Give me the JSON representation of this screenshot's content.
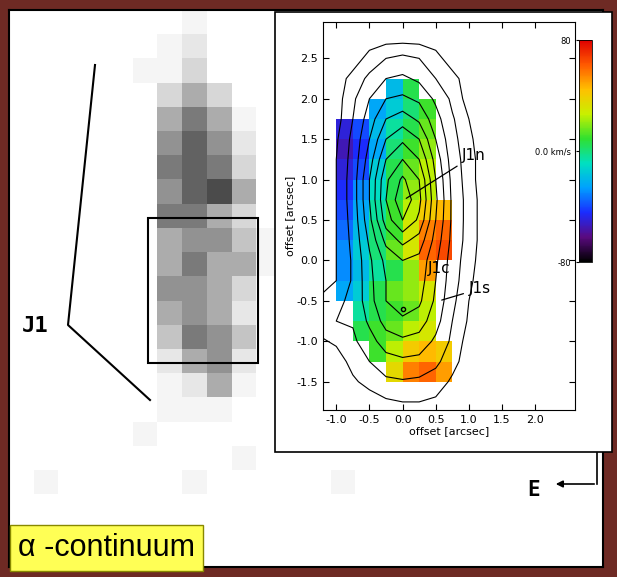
{
  "chart_data": [
    {
      "type": "image",
      "tick_labels": false,
      "annotations": [
        "J1",
        "E",
        "α -continuum"
      ],
      "cells": [
        [
          0,
          0,
          0,
          0,
          0,
          0,
          0,
          1,
          0,
          0,
          0,
          0,
          0,
          0,
          0,
          0,
          0,
          0,
          0,
          0,
          0,
          0,
          0,
          0
        ],
        [
          0,
          0,
          0,
          0,
          0,
          0,
          1,
          2,
          0,
          0,
          0,
          0,
          0,
          0,
          0,
          0,
          0,
          0,
          0,
          0,
          0,
          0,
          0,
          0
        ],
        [
          0,
          0,
          0,
          0,
          0,
          1,
          1,
          3,
          0,
          0,
          0,
          0,
          0,
          0,
          0,
          0,
          0,
          0,
          0,
          0,
          0,
          0,
          0,
          0
        ],
        [
          0,
          0,
          0,
          0,
          0,
          0,
          3,
          5,
          3,
          0,
          0,
          0,
          0,
          0,
          0,
          0,
          0,
          0,
          0,
          0,
          0,
          0,
          0,
          0
        ],
        [
          0,
          0,
          0,
          0,
          0,
          0,
          5,
          7,
          5,
          1,
          0,
          0,
          0,
          0,
          0,
          0,
          0,
          0,
          0,
          0,
          0,
          0,
          0,
          0
        ],
        [
          0,
          0,
          0,
          0,
          0,
          0,
          6,
          8,
          6,
          2,
          0,
          0,
          0,
          0,
          0,
          0,
          0,
          0,
          0,
          0,
          0,
          0,
          0,
          0
        ],
        [
          0,
          0,
          0,
          0,
          0,
          0,
          7,
          8,
          7,
          3,
          0,
          0,
          0,
          0,
          0,
          0,
          0,
          0,
          0,
          0,
          0,
          0,
          0,
          0
        ],
        [
          0,
          0,
          0,
          0,
          0,
          0,
          6,
          8,
          9,
          5,
          0,
          0,
          0,
          0,
          0,
          0,
          0,
          0,
          0,
          0,
          0,
          0,
          0,
          0
        ],
        [
          0,
          0,
          0,
          0,
          0,
          0,
          7,
          7,
          5,
          3,
          0,
          0,
          0,
          0,
          0,
          0,
          0,
          0,
          0,
          0,
          0,
          0,
          0,
          0
        ],
        [
          0,
          0,
          0,
          0,
          0,
          0,
          5,
          6,
          6,
          4,
          1,
          0,
          0,
          0,
          0,
          0,
          0,
          0,
          0,
          0,
          0,
          0,
          0,
          0
        ],
        [
          0,
          0,
          0,
          0,
          0,
          0,
          5,
          7,
          5,
          5,
          1,
          0,
          0,
          0,
          0,
          0,
          0,
          0,
          0,
          0,
          0,
          0,
          0,
          0
        ],
        [
          0,
          0,
          0,
          0,
          0,
          0,
          6,
          6,
          5,
          3,
          0,
          0,
          0,
          0,
          0,
          0,
          0,
          0,
          0,
          0,
          0,
          0,
          0,
          0
        ],
        [
          0,
          0,
          0,
          0,
          0,
          0,
          5,
          6,
          5,
          2,
          0,
          0,
          0,
          0,
          0,
          0,
          0,
          0,
          0,
          0,
          0,
          0,
          0,
          0
        ],
        [
          0,
          0,
          0,
          0,
          0,
          0,
          4,
          7,
          6,
          4,
          0,
          0,
          0,
          0,
          0,
          0,
          0,
          0,
          0,
          0,
          0,
          0,
          0,
          0
        ],
        [
          0,
          0,
          0,
          0,
          0,
          0,
          2,
          5,
          6,
          2,
          0,
          0,
          0,
          0,
          0,
          0,
          0,
          0,
          0,
          0,
          0,
          0,
          0,
          0
        ],
        [
          0,
          0,
          0,
          0,
          0,
          0,
          1,
          2,
          5,
          1,
          0,
          0,
          0,
          0,
          0,
          0,
          0,
          0,
          0,
          0,
          0,
          0,
          0,
          0
        ],
        [
          0,
          0,
          0,
          0,
          0,
          0,
          1,
          1,
          1,
          0,
          0,
          0,
          0,
          0,
          0,
          0,
          0,
          0,
          0,
          0,
          0,
          0,
          0,
          0
        ],
        [
          0,
          0,
          0,
          0,
          0,
          1,
          0,
          0,
          0,
          0,
          0,
          0,
          0,
          0,
          0,
          0,
          0,
          0,
          0,
          0,
          0,
          0,
          0,
          0
        ],
        [
          0,
          0,
          0,
          0,
          0,
          0,
          0,
          0,
          0,
          1,
          0,
          0,
          0,
          0,
          0,
          0,
          0,
          0,
          0,
          0,
          0,
          0,
          0,
          0
        ],
        [
          0,
          1,
          0,
          0,
          0,
          0,
          0,
          1,
          0,
          0,
          0,
          0,
          0,
          1,
          0,
          0,
          0,
          0,
          0,
          0,
          0,
          0,
          0,
          0
        ],
        [
          0,
          0,
          0,
          0,
          0,
          0,
          0,
          0,
          0,
          0,
          0,
          0,
          0,
          0,
          0,
          0,
          0,
          0,
          0,
          0,
          0,
          0,
          0,
          0
        ],
        [
          0,
          0,
          0,
          0,
          0,
          0,
          0,
          0,
          0,
          0,
          0,
          0,
          0,
          0,
          0,
          0,
          0,
          0,
          0,
          0,
          0,
          0,
          0,
          0
        ],
        [
          0,
          0,
          0,
          0,
          0,
          0,
          0,
          0,
          0,
          0,
          0,
          0,
          0,
          0,
          0,
          0,
          0,
          0,
          0,
          0,
          0,
          0,
          0,
          0
        ]
      ]
    },
    {
      "type": "heatmap",
      "xlabel": "offset [arcsec]",
      "ylabel": "offset [arcsec]",
      "xlim": [
        -1.2,
        2.6
      ],
      "ylim": [
        -1.85,
        2.95
      ],
      "xticks": [
        -1.0,
        -0.5,
        0.0,
        0.5,
        1.0,
        1.5,
        2.0
      ],
      "yticks": [
        -1.5,
        -1.0,
        -0.5,
        0.0,
        0.5,
        1.0,
        1.5,
        2.0,
        2.5
      ],
      "annotations": [
        "J1n",
        "J1c",
        "J1s"
      ],
      "x_edges": [
        -1.0,
        -0.75,
        -0.5,
        -0.25,
        0.0,
        0.25,
        0.5,
        0.75
      ],
      "y_edges": [
        2.25,
        2.0,
        1.75,
        1.5,
        1.25,
        1.0,
        0.75,
        0.5,
        0.25,
        0.0,
        -0.25,
        -0.5,
        -0.75,
        -1.0,
        -1.25,
        -1.5
      ],
      "cells": [
        [
          null,
          null,
          null,
          -20,
          5,
          null,
          null
        ],
        [
          null,
          null,
          -25,
          -15,
          0,
          10,
          null
        ],
        [
          -50,
          -40,
          -20,
          -5,
          5,
          15,
          null
        ],
        [
          -55,
          -45,
          -25,
          0,
          10,
          20,
          null
        ],
        [
          -50,
          -40,
          -15,
          5,
          15,
          25,
          null
        ],
        [
          -45,
          -30,
          -10,
          5,
          20,
          25,
          null
        ],
        [
          -40,
          -25,
          -5,
          10,
          25,
          40,
          45
        ],
        [
          -35,
          -20,
          0,
          10,
          30,
          55,
          60
        ],
        [
          -30,
          -15,
          0,
          15,
          30,
          60,
          65
        ],
        [
          -30,
          -20,
          -5,
          5,
          20,
          50,
          null
        ],
        [
          -25,
          -15,
          5,
          15,
          20,
          30,
          null
        ],
        [
          null,
          -5,
          5,
          10,
          15,
          25,
          null
        ],
        [
          null,
          5,
          10,
          15,
          25,
          30,
          null
        ],
        [
          null,
          null,
          10,
          25,
          40,
          45,
          40
        ],
        [
          null,
          null,
          null,
          35,
          55,
          60,
          50
        ]
      ],
      "colorbar_range": [
        -80,
        80
      ],
      "colorbar_ticks": [
        -80,
        {
          "value": 0,
          "label": "0.0 km/s"
        },
        80
      ],
      "contour_x": [
        -1.25,
        -1.0,
        -0.75,
        -0.5,
        -0.25,
        0.0,
        0.25,
        0.5,
        0.75,
        1.0,
        1.25,
        1.5
      ],
      "contour_y": [
        2.75,
        2.5,
        2.25,
        2.0,
        1.75,
        1.5,
        1.25,
        1.0,
        0.75,
        0.5,
        0.25,
        0.0,
        -0.25,
        -0.5,
        -0.75,
        -1.0,
        -1.25,
        -1.5,
        -1.75
      ],
      "contour_flux": [
        [
          0,
          0,
          0,
          0,
          0,
          0,
          0,
          0,
          0,
          0,
          0,
          0
        ],
        [
          0,
          0,
          0,
          0.5,
          1,
          1.2,
          1,
          0.5,
          0,
          0,
          0,
          0
        ],
        [
          0,
          0,
          0.5,
          1.2,
          2,
          2.2,
          1.8,
          1,
          0.5,
          0,
          0,
          0
        ],
        [
          0,
          0,
          0.8,
          2,
          3,
          3.2,
          2.8,
          1.8,
          0.8,
          0,
          0,
          0
        ],
        [
          0,
          0,
          1,
          2.5,
          4,
          4.5,
          3.8,
          2.4,
          1.1,
          0.3,
          0,
          0
        ],
        [
          0,
          0.2,
          1.2,
          3,
          5,
          5.8,
          5,
          3,
          1.3,
          0.4,
          0,
          0
        ],
        [
          0,
          0.3,
          1.3,
          3.5,
          6,
          7,
          6,
          3.6,
          1.5,
          0.5,
          0,
          0
        ],
        [
          0,
          0.3,
          1.4,
          4,
          6.8,
          8.2,
          7,
          4,
          1.7,
          0.5,
          0,
          0
        ],
        [
          0,
          0.3,
          1.4,
          4,
          7,
          8.8,
          7.3,
          4.2,
          1.8,
          0.6,
          0,
          0
        ],
        [
          0,
          0.3,
          1.3,
          3.7,
          6.5,
          8,
          6.8,
          4,
          1.8,
          0.6,
          0,
          0
        ],
        [
          0,
          0.3,
          1.2,
          3.2,
          5.3,
          6.3,
          5.6,
          3.6,
          1.7,
          0.6,
          0,
          0
        ],
        [
          0,
          0.3,
          1.1,
          2.8,
          4.3,
          5,
          4.7,
          3.2,
          1.5,
          0.5,
          0,
          0
        ],
        [
          0,
          0.3,
          1.1,
          2.7,
          4,
          4.8,
          4.5,
          3,
          1.4,
          0.4,
          0,
          0
        ],
        [
          0.4,
          0.8,
          1.2,
          2.6,
          4,
          4.6,
          4.2,
          2.8,
          1.2,
          0.3,
          0,
          0
        ],
        [
          0.6,
          1,
          1.1,
          2.2,
          3.4,
          3.8,
          3.5,
          2.4,
          1,
          0.2,
          0,
          0
        ],
        [
          0.2,
          0.4,
          0.8,
          1.6,
          2.5,
          2.8,
          2.6,
          1.8,
          0.8,
          0,
          0,
          0
        ],
        [
          0,
          0,
          0.5,
          1,
          1.6,
          1.8,
          1.7,
          1.2,
          0.5,
          0,
          0,
          0
        ],
        [
          0,
          0,
          0.2,
          0.5,
          0.8,
          0.9,
          0.8,
          0.6,
          0.2,
          0,
          0,
          0
        ],
        [
          0,
          0,
          0,
          0,
          0.2,
          0.3,
          0.3,
          0.2,
          0,
          0,
          0,
          0
        ]
      ],
      "contour_levels": [
        0.3,
        1,
        2,
        3,
        4,
        5,
        6,
        7,
        8
      ]
    }
  ]
}
